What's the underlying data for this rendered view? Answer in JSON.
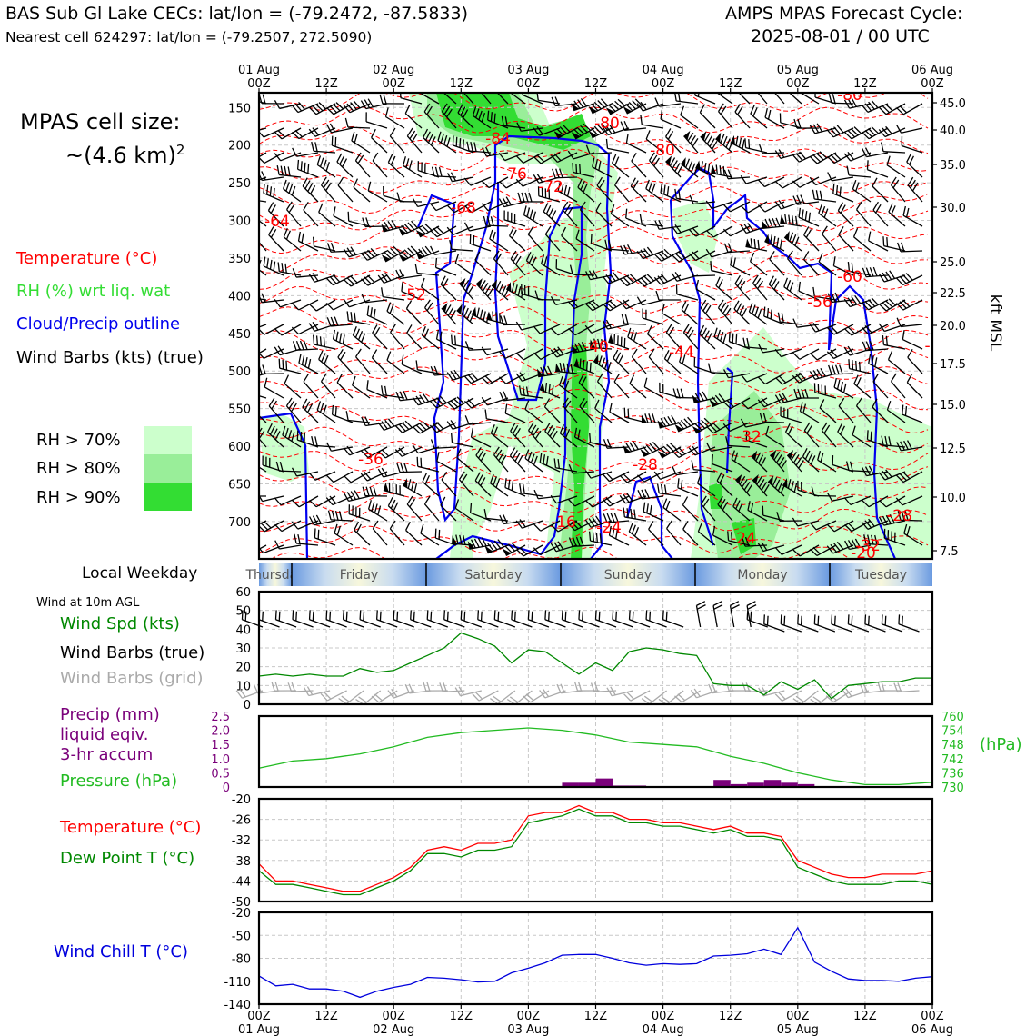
{
  "header": {
    "title_left": "BAS Sub Gl Lake CECs: lat/lon = (-79.2472, -87.5833)",
    "subtitle_left": "Nearest cell 624297: lat/lon = (-79.2507, 272.5090)",
    "title_right_1": "AMPS MPAS Forecast Cycle:",
    "title_right_2": "2025-08-01 / 00 UTC"
  },
  "sidebar": {
    "cell_size_label": "MPAS cell size:",
    "cell_size_value": "~(4.6 km)",
    "cell_size_exp": "2",
    "legend_temperature": "Temperature (°C)",
    "legend_rh": "RH (%) wrt liq. wat",
    "legend_cloud": "Cloud/Precip outline",
    "legend_wind": "Wind Barbs (kts) (true)",
    "rh_legend": [
      "RH > 70%",
      "RH > 80%",
      "RH > 90%"
    ],
    "weekday_label": "Local Weekday",
    "wind10m_label": "Wind at 10m AGL",
    "wind_spd_label": "Wind Spd (kts)",
    "wind_barbs_true_label": "Wind Barbs (true)",
    "wind_barbs_grid_label": "Wind Barbs (grid)",
    "precip_label_1": "Precip (mm)",
    "precip_label_2": "liquid eqiv.",
    "precip_label_3": "3-hr accum",
    "pressure_label": "Pressure (hPa)",
    "temp_label": "Temperature (°C)",
    "dew_label": "Dew Point T (°C)",
    "wind_chill_label": "Wind Chill T (°C)"
  },
  "colors": {
    "temperature": "#ff0000",
    "rh": "#33cc33",
    "cloud": "#0000ee",
    "pressure": "#22bb22",
    "precip": "#7a007a",
    "dewpoint": "#008800",
    "windchill": "#0000dd",
    "rh70": "#ccffcc",
    "rh80": "#99ee99",
    "rh90": "#33dd33"
  },
  "chart_data": [
    {
      "type": "line",
      "name": "time-height cross section",
      "top_ticks": [
        {
          "day": "01 Aug",
          "hour": "00Z"
        },
        {
          "day": "",
          "hour": "12Z"
        },
        {
          "day": "02 Aug",
          "hour": "00Z"
        },
        {
          "day": "",
          "hour": "12Z"
        },
        {
          "day": "03 Aug",
          "hour": "00Z"
        },
        {
          "day": "",
          "hour": "12Z"
        },
        {
          "day": "04 Aug",
          "hour": "00Z"
        },
        {
          "day": "",
          "hour": "12Z"
        },
        {
          "day": "05 Aug",
          "hour": "00Z"
        },
        {
          "day": "",
          "hour": "12Z"
        },
        {
          "day": "06 Aug",
          "hour": "00Z"
        }
      ],
      "pressure_ticks": [
        "150",
        "200",
        "250",
        "300",
        "350",
        "400",
        "450",
        "500",
        "550",
        "600",
        "650",
        "700"
      ],
      "kft_ticks": [
        "45.0",
        "40.0",
        "35.0",
        "30.0",
        "25.0",
        "22.5",
        "20.0",
        "17.5",
        "15.0",
        "12.5",
        "10.0",
        "7.5"
      ],
      "right_axis_label": "kft MSL",
      "temperature_labels": [
        "-64",
        "-68",
        "-72",
        "-76",
        "-84",
        "-80",
        "-80",
        "-80",
        "-52",
        "-40",
        "-44",
        "-56",
        "-60",
        "-36",
        "-32",
        "-28",
        "-16",
        "-24",
        "-24",
        "-28",
        "-32",
        "-20",
        "-4"
      ]
    },
    {
      "type": "table",
      "name": "local weekday",
      "days": [
        "Thursday",
        "Friday",
        "Saturday",
        "Sunday",
        "Monday",
        "Tuesday"
      ]
    },
    {
      "type": "line",
      "name": "10m wind speed",
      "x_hours": [
        0,
        3,
        6,
        9,
        12,
        15,
        18,
        21,
        24,
        27,
        30,
        33,
        36,
        39,
        42,
        45,
        48,
        51,
        54,
        57,
        60,
        63,
        66,
        69,
        72,
        75,
        78,
        81,
        84,
        87,
        90,
        93,
        96,
        99,
        102,
        105,
        108,
        111,
        114,
        117,
        120
      ],
      "values": [
        15,
        16,
        15,
        16,
        15,
        15,
        19,
        17,
        18,
        22,
        26,
        30,
        38,
        35,
        31,
        22,
        29,
        28,
        22,
        16,
        22,
        18,
        28,
        30,
        29,
        27,
        26,
        11,
        10,
        10,
        5,
        12,
        8,
        13,
        3,
        10,
        11,
        12,
        12,
        14,
        14
      ],
      "y_ticks": [
        "0",
        "10",
        "20",
        "30",
        "40",
        "50",
        "60"
      ],
      "ylim": [
        0,
        60
      ]
    },
    {
      "type": "bar",
      "name": "precip and pressure",
      "precip_ticks": [
        "0",
        "0.5",
        "1.0",
        "1.5",
        "2.0",
        "2.5"
      ],
      "pressure_ticks": [
        "730",
        "736",
        "742",
        "748",
        "754",
        "760"
      ],
      "pressure_axis_label": "(hPa)",
      "x_hours": [
        0,
        6,
        12,
        18,
        24,
        30,
        36,
        42,
        48,
        54,
        60,
        66,
        72,
        78,
        84,
        90,
        96,
        102,
        108,
        114,
        120
      ],
      "pressure": [
        738,
        741,
        742,
        744,
        747,
        751,
        753,
        754,
        755,
        754,
        752,
        749,
        748,
        747,
        743,
        740,
        736,
        733,
        731,
        731,
        732
      ],
      "precip_bars": [
        {
          "start": 54,
          "end": 57,
          "value": 0.15
        },
        {
          "start": 57,
          "end": 60,
          "value": 0.15
        },
        {
          "start": 60,
          "end": 63,
          "value": 0.3
        },
        {
          "start": 63,
          "end": 66,
          "value": 0.05
        },
        {
          "start": 66,
          "end": 69,
          "value": 0.05
        },
        {
          "start": 81,
          "end": 84,
          "value": 0.25
        },
        {
          "start": 84,
          "end": 87,
          "value": 0.1
        },
        {
          "start": 87,
          "end": 90,
          "value": 0.15
        },
        {
          "start": 90,
          "end": 93,
          "value": 0.25
        },
        {
          "start": 93,
          "end": 96,
          "value": 0.15
        },
        {
          "start": 96,
          "end": 99,
          "value": 0.1
        }
      ],
      "precip_ylim": [
        0,
        2.5
      ],
      "pressure_ylim": [
        730,
        760
      ]
    },
    {
      "type": "line",
      "name": "temperature and dew point",
      "y_ticks": [
        "-20",
        "-26",
        "-32",
        "-38",
        "-44",
        "-50"
      ],
      "ylim": [
        -50,
        -20
      ],
      "x_hours": [
        0,
        3,
        6,
        9,
        12,
        15,
        18,
        21,
        24,
        27,
        30,
        33,
        36,
        39,
        42,
        45,
        48,
        51,
        54,
        57,
        60,
        63,
        66,
        69,
        72,
        75,
        78,
        81,
        84,
        87,
        90,
        93,
        96,
        99,
        102,
        105,
        108,
        111,
        114,
        117,
        120
      ],
      "temperature": [
        -39,
        -44,
        -44,
        -45,
        -46,
        -47,
        -47,
        -45,
        -43,
        -40,
        -35,
        -34,
        -35,
        -33,
        -33,
        -32,
        -25,
        -24,
        -24,
        -22,
        -24,
        -24,
        -26,
        -26,
        -27,
        -27,
        -28,
        -29,
        -28,
        -30,
        -30,
        -31,
        -38,
        -40,
        -42,
        -43,
        -43,
        -42,
        -42,
        -42,
        -41
      ],
      "dewpoint": [
        -41,
        -45,
        -45,
        -46,
        -47,
        -48,
        -48,
        -46,
        -44,
        -41,
        -36,
        -36,
        -37,
        -35,
        -35,
        -34,
        -27,
        -26,
        -25,
        -23,
        -25,
        -25,
        -27,
        -27,
        -28,
        -28,
        -29,
        -30,
        -29,
        -31,
        -31,
        -32,
        -40,
        -42,
        -44,
        -45,
        -45,
        -45,
        -44,
        -44,
        -45
      ]
    },
    {
      "type": "line",
      "name": "wind chill",
      "y_ticks": [
        "-20",
        "-50",
        "-80",
        "-110",
        "-140"
      ],
      "ylim": [
        -140,
        -20
      ],
      "x_hours": [
        0,
        3,
        6,
        9,
        12,
        15,
        18,
        21,
        24,
        27,
        30,
        33,
        36,
        39,
        42,
        45,
        48,
        51,
        54,
        57,
        60,
        63,
        66,
        69,
        72,
        75,
        78,
        81,
        84,
        87,
        90,
        93,
        96,
        99,
        102,
        105,
        108,
        111,
        114,
        117,
        120
      ],
      "values": [
        -103,
        -116,
        -114,
        -120,
        -120,
        -123,
        -131,
        -123,
        -118,
        -114,
        -105,
        -106,
        -108,
        -111,
        -110,
        -99,
        -93,
        -86,
        -76,
        -75,
        -75,
        -80,
        -86,
        -89,
        -87,
        -88,
        -87,
        -77,
        -76,
        -74,
        -68,
        -75,
        -40,
        -85,
        -97,
        -107,
        -109,
        -109,
        -110,
        -106,
        -104
      ]
    }
  ],
  "bottom_axis": [
    {
      "hour": "00Z",
      "day": "01 Aug"
    },
    {
      "hour": "12Z",
      "day": ""
    },
    {
      "hour": "00Z",
      "day": "02 Aug"
    },
    {
      "hour": "12Z",
      "day": ""
    },
    {
      "hour": "00Z",
      "day": "03 Aug"
    },
    {
      "hour": "12Z",
      "day": ""
    },
    {
      "hour": "00Z",
      "day": "04 Aug"
    },
    {
      "hour": "12Z",
      "day": ""
    },
    {
      "hour": "00Z",
      "day": "05 Aug"
    },
    {
      "hour": "12Z",
      "day": ""
    },
    {
      "hour": "00Z",
      "day": "06 Aug"
    }
  ]
}
